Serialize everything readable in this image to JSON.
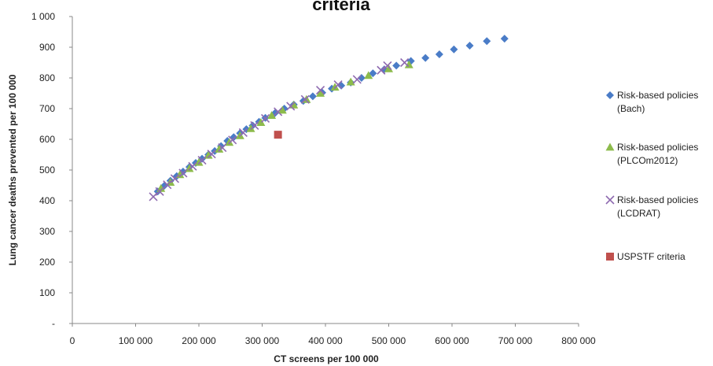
{
  "chart_data": {
    "type": "scatter",
    "title": "criteria",
    "xlabel": "CT screens per 100 000",
    "ylabel": "Lung cancer deaths prevented per 100 000",
    "xlim": [
      0,
      800000
    ],
    "ylim": [
      0,
      1000
    ],
    "x_ticks": [
      0,
      100000,
      200000,
      300000,
      400000,
      500000,
      600000,
      700000,
      800000
    ],
    "x_tick_labels": [
      "0",
      "100 000",
      "200 000",
      "300 000",
      "400 000",
      "500 000",
      "600 000",
      "700 000",
      "800 000"
    ],
    "y_ticks": [
      0,
      100,
      200,
      300,
      400,
      500,
      600,
      700,
      800,
      900,
      1000
    ],
    "y_tick_labels": [
      "-",
      "100",
      "200",
      "300",
      "400",
      "500",
      "600",
      "700",
      "800",
      "900",
      "1 000"
    ],
    "grid": false,
    "legend_position": "right",
    "series": [
      {
        "name": "Risk-based policies (Bach)",
        "legend_lines": [
          "Risk-based policies",
          "(Bach)"
        ],
        "marker": "diamond",
        "color": "#4a7cc7",
        "points": [
          [
            135000,
            430
          ],
          [
            145000,
            448
          ],
          [
            155000,
            465
          ],
          [
            165000,
            480
          ],
          [
            175000,
            495
          ],
          [
            185000,
            510
          ],
          [
            195000,
            523
          ],
          [
            205000,
            537
          ],
          [
            215000,
            550
          ],
          [
            225000,
            562
          ],
          [
            235000,
            578
          ],
          [
            245000,
            595
          ],
          [
            255000,
            607
          ],
          [
            265000,
            620
          ],
          [
            275000,
            633
          ],
          [
            285000,
            645
          ],
          [
            295000,
            657
          ],
          [
            305000,
            670
          ],
          [
            320000,
            685
          ],
          [
            335000,
            700
          ],
          [
            350000,
            713
          ],
          [
            365000,
            725
          ],
          [
            380000,
            740
          ],
          [
            395000,
            752
          ],
          [
            410000,
            765
          ],
          [
            425000,
            775
          ],
          [
            440000,
            785
          ],
          [
            457000,
            800
          ],
          [
            475000,
            815
          ],
          [
            493000,
            828
          ],
          [
            512000,
            840
          ],
          [
            535000,
            855
          ],
          [
            558000,
            865
          ],
          [
            580000,
            877
          ],
          [
            603000,
            893
          ],
          [
            628000,
            905
          ],
          [
            655000,
            920
          ],
          [
            683000,
            928
          ]
        ]
      },
      {
        "name": "Risk-based policies (PLCOm2012)",
        "legend_lines": [
          "Risk-based policies",
          "(PLCOm2012)"
        ],
        "marker": "triangle",
        "color": "#8dbb4c",
        "points": [
          [
            140000,
            440
          ],
          [
            155000,
            460
          ],
          [
            170000,
            485
          ],
          [
            185000,
            505
          ],
          [
            200000,
            525
          ],
          [
            215000,
            548
          ],
          [
            232000,
            568
          ],
          [
            248000,
            590
          ],
          [
            265000,
            612
          ],
          [
            282000,
            635
          ],
          [
            298000,
            655
          ],
          [
            315000,
            678
          ],
          [
            332000,
            695
          ],
          [
            350000,
            712
          ],
          [
            370000,
            730
          ],
          [
            392000,
            750
          ],
          [
            415000,
            770
          ],
          [
            440000,
            787
          ],
          [
            468000,
            808
          ],
          [
            500000,
            830
          ],
          [
            532000,
            843
          ]
        ]
      },
      {
        "name": "Risk-based policies (LCDRAT)",
        "legend_lines": [
          "Risk-based policies",
          "(LCDRAT)"
        ],
        "marker": "x",
        "color": "#8e6ab0",
        "points": [
          [
            128000,
            413
          ],
          [
            138000,
            430
          ],
          [
            150000,
            452
          ],
          [
            162000,
            472
          ],
          [
            175000,
            490
          ],
          [
            190000,
            512
          ],
          [
            205000,
            532
          ],
          [
            220000,
            552
          ],
          [
            237000,
            573
          ],
          [
            253000,
            598
          ],
          [
            270000,
            622
          ],
          [
            288000,
            645
          ],
          [
            305000,
            668
          ],
          [
            325000,
            690
          ],
          [
            345000,
            708
          ],
          [
            368000,
            730
          ],
          [
            392000,
            760
          ],
          [
            420000,
            778
          ],
          [
            450000,
            795
          ],
          [
            488000,
            825
          ],
          [
            498000,
            840
          ],
          [
            525000,
            850
          ]
        ]
      },
      {
        "name": "USPSTF criteria",
        "legend_lines": [
          "USPSTF criteria"
        ],
        "marker": "square",
        "color": "#c0504d",
        "points": [
          [
            325000,
            615
          ]
        ]
      }
    ]
  }
}
